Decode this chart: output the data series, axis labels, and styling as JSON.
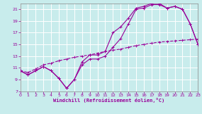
{
  "bg_color": "#c8ecec",
  "grid_color": "#b8d8d8",
  "line_color": "#990099",
  "xlim": [
    0,
    23
  ],
  "ylim": [
    7,
    22
  ],
  "xticks": [
    0,
    1,
    2,
    3,
    4,
    5,
    6,
    7,
    8,
    9,
    10,
    11,
    12,
    13,
    14,
    15,
    16,
    17,
    18,
    19,
    20,
    21,
    22,
    23
  ],
  "yticks": [
    7,
    9,
    11,
    13,
    15,
    17,
    19,
    21
  ],
  "xlabel": "Windchill (Refroidissement éolien,°C)",
  "curve1_x": [
    0,
    1,
    2,
    3,
    4,
    5,
    6,
    7,
    8,
    9,
    10,
    11,
    12,
    13,
    14,
    15,
    16,
    17,
    18,
    19,
    20,
    21,
    22,
    23
  ],
  "curve1_y": [
    10.5,
    9.8,
    10.5,
    11.2,
    10.5,
    9.2,
    7.5,
    9.0,
    12.0,
    13.2,
    13.2,
    13.8,
    17.0,
    18.0,
    19.5,
    21.2,
    21.5,
    22.0,
    22.0,
    21.2,
    21.5,
    21.0,
    18.5,
    15.0
  ],
  "curve2_x": [
    0,
    1,
    2,
    3,
    4,
    5,
    6,
    7,
    8,
    9,
    10,
    11,
    12,
    13,
    14,
    15,
    16,
    17,
    18,
    19,
    20,
    21,
    22,
    23
  ],
  "curve2_y": [
    10.5,
    9.8,
    10.5,
    11.2,
    10.5,
    9.2,
    7.5,
    9.0,
    11.5,
    12.5,
    12.5,
    13.0,
    14.5,
    16.0,
    18.5,
    21.0,
    21.2,
    21.8,
    21.8,
    21.2,
    21.5,
    21.0,
    18.5,
    15.0
  ],
  "curve3_x": [
    0,
    1,
    2,
    3,
    4,
    5,
    6,
    7,
    8,
    9,
    10,
    11,
    12,
    13,
    14,
    15,
    16,
    17,
    18,
    19,
    20,
    21,
    22,
    23
  ],
  "curve3_y": [
    10.5,
    10.2,
    10.8,
    11.5,
    11.8,
    12.2,
    12.5,
    12.8,
    13.0,
    13.2,
    13.5,
    13.8,
    14.0,
    14.2,
    14.5,
    14.8,
    15.0,
    15.2,
    15.4,
    15.5,
    15.6,
    15.7,
    15.8,
    15.9
  ]
}
